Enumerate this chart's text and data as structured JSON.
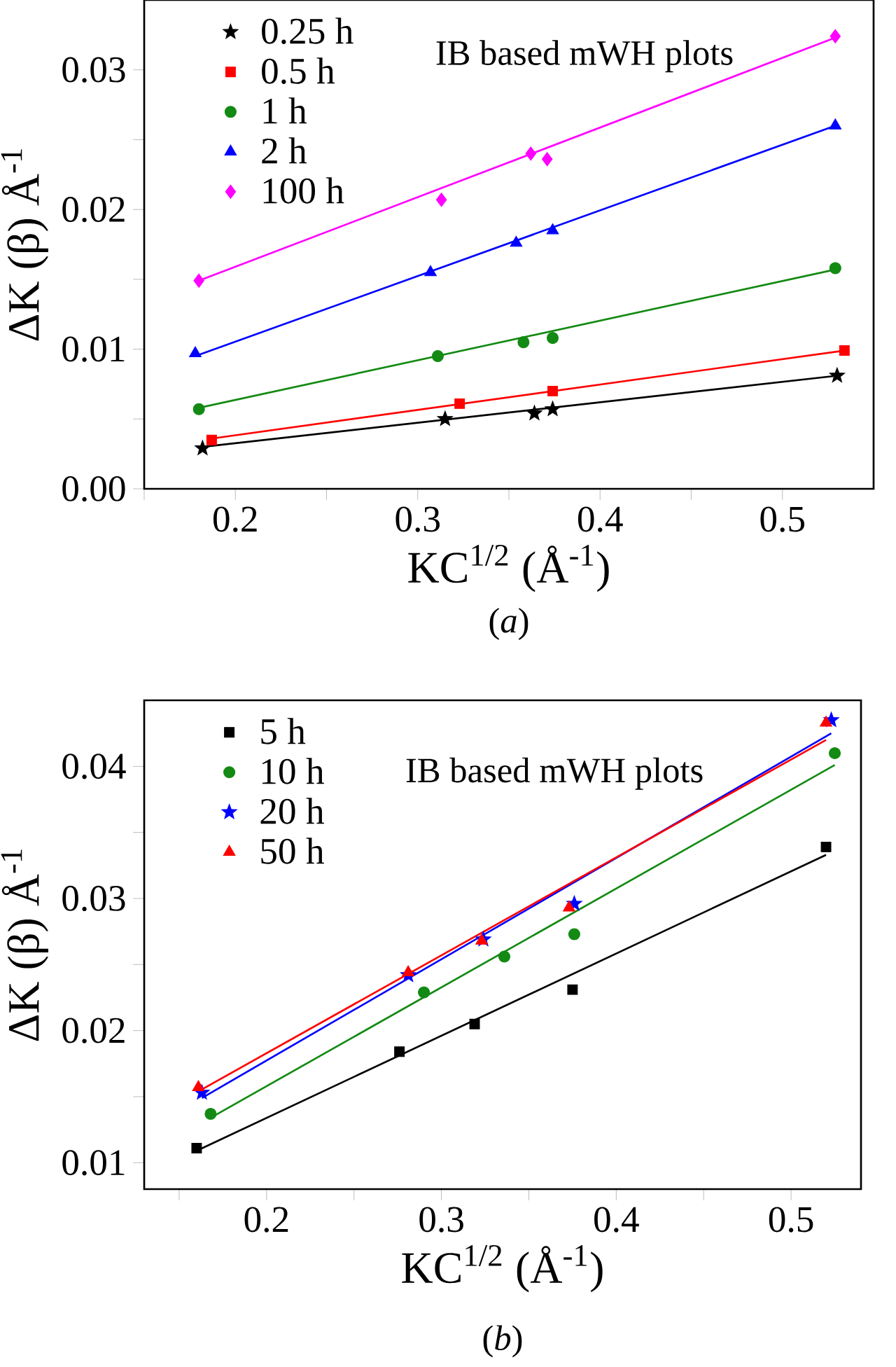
{
  "chart_data": [
    {
      "type": "scatter",
      "xlabel": "KC$^{1/2}$ (Å$^{-1}$)",
      "ylabel": "ΔK (β) Å$^{-1}$",
      "annotations": [
        "IB based mWH plots",
        "(*a*)"
      ],
      "xlim": [
        0.15,
        0.55
      ],
      "ylim": [
        0,
        0.035
      ],
      "xticks": [
        {
          "value": 0.15,
          "label": null
        },
        0.2,
        {
          "value": 0.25,
          "label": null
        },
        0.3,
        {
          "value": 0.35,
          "label": null
        },
        0.4,
        {
          "value": 0.45,
          "label": null
        },
        0.5
      ],
      "yticks": [
        {
          "value": 0,
          "label": "0.00"
        },
        {
          "value": 0.005,
          "label": null
        },
        0.01,
        {
          "value": 0.015,
          "label": null
        },
        0.02,
        {
          "value": 0.025,
          "label": null
        },
        0.03
      ],
      "legend": "top left",
      "series": [
        {
          "name": "0.25 h",
          "marker": "star",
          "color": "#000000",
          "x": [
            0.182,
            0.315,
            0.364,
            0.374,
            0.53
          ],
          "values": [
            0.0029,
            0.005,
            0.0054,
            0.0057,
            0.0081
          ]
        },
        {
          "name": "0.5 h",
          "marker": "square",
          "color": "#ff0000",
          "x": [
            0.187,
            0.323,
            0.374,
            0.534
          ],
          "values": [
            0.0035,
            0.0061,
            0.007,
            0.0099
          ]
        },
        {
          "name": "1 h",
          "marker": "circle",
          "color": "#138a13",
          "x": [
            0.18,
            0.311,
            0.358,
            0.374,
            0.529
          ],
          "values": [
            0.0057,
            0.0095,
            0.0105,
            0.0108,
            0.0158
          ]
        },
        {
          "name": "2 h",
          "marker": "triangle",
          "color": "#0000ff",
          "x": [
            0.178,
            0.307,
            0.354,
            0.374,
            0.529
          ],
          "values": [
            0.0097,
            0.0155,
            0.0176,
            0.0185,
            0.026
          ]
        },
        {
          "name": "100 h",
          "marker": "diamond",
          "color": "#ff00ff",
          "x": [
            0.18,
            0.313,
            0.362,
            0.371,
            0.529
          ],
          "values": [
            0.0149,
            0.0207,
            0.024,
            0.0236,
            0.0324
          ]
        },
        {
          "type": "line",
          "color": "#000000",
          "x": [
            0.182,
            0.53
          ],
          "values": [
            0.003,
            0.0081
          ]
        },
        {
          "type": "line",
          "color": "#ff0000",
          "x": [
            0.187,
            0.534
          ],
          "values": [
            0.0036,
            0.0099
          ]
        },
        {
          "type": "line",
          "color": "#138a13",
          "x": [
            0.18,
            0.529
          ],
          "values": [
            0.0058,
            0.0157
          ]
        },
        {
          "type": "line",
          "color": "#0000ff",
          "x": [
            0.178,
            0.529
          ],
          "values": [
            0.0095,
            0.026
          ]
        },
        {
          "type": "line",
          "color": "#ff00ff",
          "x": [
            0.18,
            0.529
          ],
          "values": [
            0.0149,
            0.0323
          ]
        }
      ]
    },
    {
      "type": "scatter",
      "xlabel": "KC$^{1/2}$ (Å$^{-1}$)",
      "ylabel": "ΔK (β) Å$^{-1}$",
      "annotations": [
        "IB based mWH plots",
        "(*b*)"
      ],
      "xlim": [
        0.13,
        0.54
      ],
      "ylim": [
        0.008,
        0.045
      ],
      "xticks": [
        {
          "value": 0.15,
          "label": null
        },
        0.2,
        {
          "value": 0.25,
          "label": null
        },
        0.3,
        {
          "value": 0.35,
          "label": null
        },
        0.4,
        {
          "value": 0.45,
          "label": null
        },
        0.5
      ],
      "yticks": [
        0.01,
        {
          "value": 0.015,
          "label": null
        },
        0.02,
        {
          "value": 0.025,
          "label": null
        },
        0.03,
        {
          "value": 0.035,
          "label": null
        },
        0.04
      ],
      "legend": "top left",
      "series": [
        {
          "name": "5 h",
          "marker": "square",
          "color": "#000000",
          "x": [
            0.16,
            0.276,
            0.319,
            0.375,
            0.52
          ],
          "values": [
            0.0111,
            0.0184,
            0.0205,
            0.0231,
            0.0339
          ]
        },
        {
          "name": "10 h",
          "marker": "circle",
          "color": "#138a13",
          "x": [
            0.168,
            0.29,
            0.336,
            0.376,
            0.525
          ],
          "values": [
            0.0137,
            0.0229,
            0.0256,
            0.0273,
            0.041
          ]
        },
        {
          "name": "20 h",
          "marker": "star",
          "color": "#0000ff",
          "x": [
            0.163,
            0.281,
            0.324,
            0.376,
            0.523
          ],
          "values": [
            0.0153,
            0.0242,
            0.0269,
            0.0296,
            0.0435
          ]
        },
        {
          "name": "50 h",
          "marker": "triangle",
          "color": "#ff0000",
          "x": [
            0.161,
            0.281,
            0.323,
            0.373,
            0.52
          ],
          "values": [
            0.0157,
            0.0244,
            0.0268,
            0.0293,
            0.0433
          ]
        },
        {
          "type": "line",
          "color": "#000000",
          "x": [
            0.16,
            0.52
          ],
          "values": [
            0.0109,
            0.0333
          ]
        },
        {
          "type": "line",
          "color": "#138a13",
          "x": [
            0.168,
            0.525
          ],
          "values": [
            0.0134,
            0.0401
          ]
        },
        {
          "type": "line",
          "color": "#0000ff",
          "x": [
            0.163,
            0.523
          ],
          "values": [
            0.0149,
            0.0425
          ]
        },
        {
          "type": "line",
          "color": "#ff0000",
          "x": [
            0.161,
            0.52
          ],
          "values": [
            0.0154,
            0.042
          ]
        }
      ]
    }
  ]
}
